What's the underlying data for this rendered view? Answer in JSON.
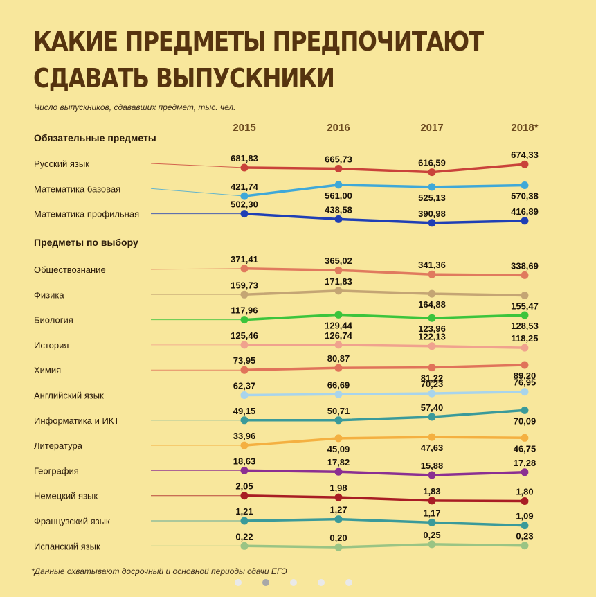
{
  "header": {
    "title_line1": "КАКИЕ ПРЕДМЕТЫ ПРЕДПОЧИТАЮТ",
    "title_line2": "СДАВАТЬ ВЫПУСКНИКИ",
    "subtitle": "Число выпускников, сдававших предмет, тыс. чел."
  },
  "footnote": "*Данные охватывают досрочный и основной периоды сдачи ЕГЭ",
  "pager": {
    "count": 5,
    "active_index": 1
  },
  "chart_data": {
    "type": "line",
    "title": "КАКИЕ ПРЕДМЕТЫ ПРЕДПОЧИТАЮТ СДАВАТЬ ВЫПУСКНИКИ",
    "ylabel": "Число выпускников, сдававших предмет, тыс. чел.",
    "x": [
      "2015",
      "2016",
      "2017",
      "2018*"
    ],
    "groups": [
      {
        "label": "Обязательные предметы",
        "series": [
          {
            "name": "Русский язык",
            "values": [
              681.83,
              665.73,
              616.59,
              674.33
            ],
            "labels": [
              "681,83",
              "665,73",
              "616,59",
              "674,33"
            ],
            "color": "#c9423a",
            "rel": [
              0.5,
              0.62,
              1.05,
              0.1
            ],
            "label_pos": [
              "above",
              "above",
              "above",
              "above"
            ]
          },
          {
            "name": "Математика базовая",
            "values": [
              421.74,
              561.0,
              525.13,
              570.38
            ],
            "labels": [
              "421,74",
              "561,00",
              "525,13",
              "570,38"
            ],
            "color": "#3fa8d8",
            "rel": [
              0.9,
              -0.45,
              -0.2,
              -0.4
            ],
            "label_pos": [
              "above",
              "below",
              "below",
              "below"
            ]
          },
          {
            "name": "Математика профильная",
            "values": [
              502.3,
              438.58,
              390.98,
              416.89
            ],
            "labels": [
              "502,30",
              "438,58",
              "390,98",
              "416,89"
            ],
            "color": "#1f3fb5",
            "rel": [
              0.0,
              0.65,
              1.1,
              0.85
            ],
            "label_pos": [
              "above",
              "above",
              "above",
              "above"
            ]
          }
        ]
      },
      {
        "label": "Предметы по выбору",
        "series": [
          {
            "name": "Обществознание",
            "values": [
              371.41,
              365.02,
              341.36,
              338.69
            ],
            "labels": [
              "371,41",
              "365,02",
              "341,36",
              "338,69"
            ],
            "color": "#e07a5e",
            "rel": [
              -0.1,
              0.1,
              0.6,
              0.7
            ],
            "label_pos": [
              "above",
              "above",
              "above",
              "above"
            ]
          },
          {
            "name": "Физика",
            "values": [
              159.73,
              171.83,
              164.88,
              155.47
            ],
            "labels": [
              "159,73",
              "171,83",
              "164,88",
              "155,47"
            ],
            "color": "#c4a574",
            "rel": [
              0.0,
              -0.45,
              -0.1,
              0.1
            ],
            "label_pos": [
              "above",
              "above",
              "below",
              "below"
            ]
          },
          {
            "name": "Биология",
            "values": [
              117.96,
              129.44,
              123.96,
              128.53
            ],
            "labels": [
              "117,96",
              "129,44",
              "123,96",
              "128,53"
            ],
            "color": "#3cc43c",
            "rel": [
              0.0,
              -0.6,
              -0.2,
              -0.55
            ],
            "label_pos": [
              "above",
              "below",
              "below",
              "below"
            ]
          },
          {
            "name": "История",
            "values": [
              125.46,
              126.74,
              122.13,
              118.25
            ],
            "labels": [
              "125,46",
              "126,74",
              "122,13",
              "118,25"
            ],
            "color": "#f0a28e",
            "rel": [
              0.0,
              0.0,
              0.15,
              0.35
            ],
            "label_pos": [
              "above",
              "above",
              "above",
              "above"
            ]
          },
          {
            "name": "Химия",
            "values": [
              73.95,
              80.87,
              81.22,
              89.2
            ],
            "labels": [
              "73,95",
              "80,87",
              "81,22",
              "89,20"
            ],
            "color": "#e0735a",
            "rel": [
              0.0,
              -0.25,
              -0.3,
              -0.6
            ],
            "label_pos": [
              "above",
              "above",
              "below",
              "below"
            ]
          },
          {
            "name": "Английский язык",
            "values": [
              62.37,
              66.69,
              70.23,
              76.95
            ],
            "labels": [
              "62,37",
              "66,69",
              "70,23",
              "76,95"
            ],
            "color": "#a8d4ec",
            "rel": [
              0.0,
              -0.1,
              -0.2,
              -0.4
            ],
            "label_pos": [
              "above",
              "above",
              "above",
              "above"
            ]
          },
          {
            "name": "Информатика и ИКТ",
            "values": [
              49.15,
              50.71,
              57.4,
              70.09
            ],
            "labels": [
              "49,15",
              "50,71",
              "57,40",
              "70,09"
            ],
            "color": "#3a9a9a",
            "rel": [
              0.0,
              0.0,
              -0.4,
              -1.2
            ],
            "label_pos": [
              "above",
              "above",
              "above",
              "below"
            ]
          },
          {
            "name": "Литература",
            "values": [
              33.96,
              45.09,
              47.63,
              46.75
            ],
            "labels": [
              "33,96",
              "45,09",
              "47,63",
              "46,75"
            ],
            "color": "#f4b041",
            "rel": [
              0.0,
              -0.85,
              -1.0,
              -0.9
            ],
            "label_pos": [
              "above",
              "below",
              "below",
              "below"
            ]
          },
          {
            "name": "География",
            "values": [
              18.63,
              17.82,
              15.88,
              17.28
            ],
            "labels": [
              "18,63",
              "17,82",
              "15,88",
              "17,28"
            ],
            "color": "#8b2f92",
            "rel": [
              0.0,
              0.15,
              0.55,
              0.2
            ],
            "label_pos": [
              "above",
              "above",
              "above",
              "above"
            ]
          },
          {
            "name": "Немецкий язык",
            "values": [
              2.05,
              1.98,
              1.83,
              1.8
            ],
            "labels": [
              "2,05",
              "1,98",
              "1,83",
              "1,80"
            ],
            "color": "#a81d24",
            "rel": [
              0.0,
              0.2,
              0.6,
              0.65
            ],
            "label_pos": [
              "above",
              "above",
              "above",
              "above"
            ]
          },
          {
            "name": "Французский язык",
            "values": [
              1.21,
              1.27,
              1.17,
              1.09
            ],
            "labels": [
              "1,21",
              "1,27",
              "1,17",
              "1,09"
            ],
            "color": "#3a9a9a",
            "rel": [
              0.0,
              -0.2,
              0.2,
              0.55
            ],
            "label_pos": [
              "above",
              "above",
              "above",
              "above"
            ]
          },
          {
            "name": "Испанский язык",
            "values": [
              0.22,
              0.2,
              0.25,
              0.23
            ],
            "labels": [
              "0,22",
              "0,20",
              "0,25",
              "0,23"
            ],
            "color": "#9ac484",
            "rel": [
              0.0,
              0.15,
              -0.2,
              -0.05
            ],
            "label_pos": [
              "above",
              "above",
              "above",
              "above"
            ]
          }
        ]
      }
    ]
  }
}
